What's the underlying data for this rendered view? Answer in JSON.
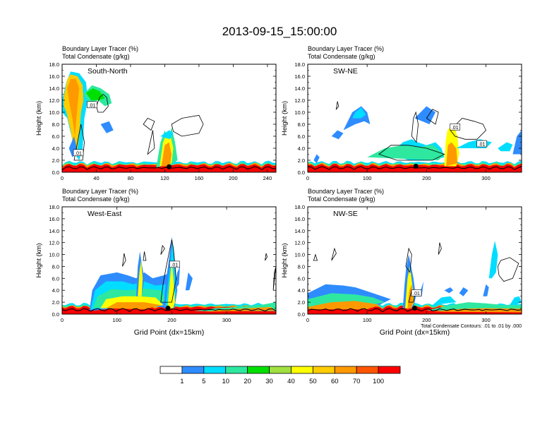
{
  "title": "2013-09-15_15:00:00",
  "colors": {
    "levels": [
      "#ffffff",
      "#2e8cff",
      "#00ddff",
      "#2ee8a0",
      "#00e000",
      "#a0e040",
      "#ffff00",
      "#ffcc00",
      "#ff9900",
      "#ff5500",
      "#ff0000"
    ],
    "contour": "#000000",
    "terrain": "#000000"
  },
  "chart_data": [
    {
      "type": "heatmap",
      "section": "South-North",
      "label_line1": "Boundary Layer Tracer   (%)",
      "label_line2": "Total Condensate   (g/kg)",
      "ylabel": "Height (km)",
      "xlabel": "",
      "xlim": [
        0,
        250
      ],
      "ylim": [
        0,
        18
      ],
      "xticks": [
        "0",
        "40",
        "80",
        "120",
        "160",
        "200",
        "240"
      ],
      "yticks": [
        "0.0",
        "2.0",
        "4.0",
        "6.0",
        "8.0",
        "10.0",
        "12.0",
        "14.0",
        "16.0",
        "18.0"
      ],
      "contour_labels": [
        {
          "x": 35,
          "y": 11.2,
          "text": ".01"
        },
        {
          "x": 19,
          "y": 3.2,
          "text": ".01"
        }
      ],
      "marker": {
        "x": 125,
        "y": 0.9
      }
    },
    {
      "type": "heatmap",
      "section": "SW-NE",
      "label_line1": "Boundary Layer Tracer   (%)",
      "label_line2": "Total Condensate   (g/kg)",
      "ylabel": "Height (km)",
      "xlabel": "",
      "xlim": [
        0,
        360
      ],
      "ylim": [
        0,
        18
      ],
      "xticks": [
        "0",
        "100",
        "200",
        "300"
      ],
      "yticks": [
        "0.0",
        "2.0",
        "4.0",
        "6.0",
        "8.0",
        "10.0",
        "12.0",
        "14.0",
        "16.0",
        "18.0"
      ],
      "contour_labels": [
        {
          "x": 248,
          "y": 7.5,
          "text": ".01"
        },
        {
          "x": 293,
          "y": 4.7,
          "text": ".01"
        }
      ],
      "marker": {
        "x": 182,
        "y": 1.0
      }
    },
    {
      "type": "heatmap",
      "section": "West-East",
      "label_line1": "Boundary Layer Tracer   (%)",
      "label_line2": "Total Condensate   (g/kg)",
      "ylabel": "Height (km)",
      "xlabel": "Grid Point (dx=15km)",
      "xlim": [
        0,
        390
      ],
      "ylim": [
        0,
        18
      ],
      "xticks": [
        "0",
        "100",
        "200",
        "300"
      ],
      "yticks": [
        "0.0",
        "2.0",
        "4.0",
        "6.0",
        "8.0",
        "10.0",
        "12.0",
        "14.0",
        "16.0",
        "18.0"
      ],
      "contour_labels": [
        {
          "x": 205,
          "y": 8.3,
          "text": ".01"
        }
      ],
      "marker": {
        "x": 193,
        "y": 1.0
      }
    },
    {
      "type": "heatmap",
      "section": "NW-SE",
      "label_line1": "Boundary Layer Tracer   (%)",
      "label_line2": "Total Condensate   (g/kg)",
      "ylabel": "Height (km)",
      "xlabel": "Grid Point (dx=15km)",
      "xlim": [
        0,
        360
      ],
      "ylim": [
        0,
        18
      ],
      "xticks": [
        "0",
        "100",
        "200",
        "300"
      ],
      "yticks": [
        "0.0",
        "2.0",
        "4.0",
        "6.0",
        "8.0",
        "10.0",
        "12.0",
        "14.0",
        "16.0",
        "18.0"
      ],
      "contour_labels": [
        {
          "x": 183,
          "y": 3.5,
          "text": ".01"
        }
      ],
      "marker": {
        "x": 180,
        "y": 1.0
      },
      "contour_note": "Total Condensate Contours: .01 to .01 by .000"
    }
  ],
  "colorbar": {
    "labels": [
      "1",
      "5",
      "10",
      "20",
      "30",
      "40",
      "50",
      "60",
      "70",
      "100"
    ]
  }
}
